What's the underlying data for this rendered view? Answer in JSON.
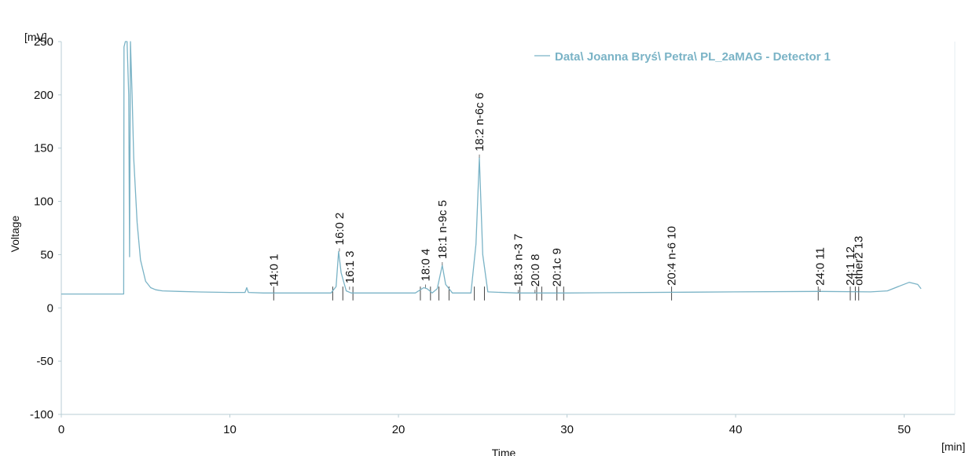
{
  "chart_data": {
    "type": "line",
    "title": "",
    "xlabel": "Time",
    "ylabel": "Voltage",
    "x_unit": "[min]",
    "y_unit": "[mV]",
    "xlim": [
      0,
      53
    ],
    "ylim": [
      -100,
      250
    ],
    "xticks": [
      0,
      10,
      20,
      30,
      40,
      50
    ],
    "yticks": [
      -100,
      -50,
      0,
      50,
      100,
      150,
      200,
      250
    ],
    "grid": false,
    "legend_position": "top-right",
    "line_color": "#7ab3c6",
    "series": [
      {
        "name": "Data\\ Joanna Bryś\\ Petra\\ PL_2aMAG - Detector 1",
        "x": [
          0,
          3.7,
          3.72,
          3.8,
          3.9,
          4.0,
          4.05,
          4.1,
          4.2,
          4.3,
          4.5,
          4.7,
          5.0,
          5.3,
          5.6,
          6.0,
          7.0,
          8.0,
          10.0,
          10.9,
          11.0,
          11.1,
          12.0,
          14.0,
          16.0,
          16.3,
          16.45,
          16.6,
          16.9,
          17.2,
          18.0,
          21.0,
          21.5,
          21.7,
          22.0,
          22.3,
          22.6,
          22.8,
          23.2,
          24.3,
          24.6,
          24.8,
          25.0,
          25.3,
          27.0,
          30.0,
          40.0,
          45.0,
          48.0,
          49.0,
          49.8,
          50.3,
          50.8,
          51.0
        ],
        "y": [
          13,
          13,
          245,
          250,
          250,
          200,
          48,
          250,
          200,
          140,
          80,
          45,
          25,
          19,
          17,
          16,
          15.5,
          15,
          14.5,
          14.5,
          19,
          14.5,
          14,
          14,
          14,
          20,
          53,
          33,
          16,
          14,
          14,
          14,
          19,
          18,
          14,
          18,
          40,
          22,
          14,
          14,
          60,
          141,
          50,
          15,
          14,
          14,
          15,
          15.5,
          15,
          16,
          21,
          24,
          22,
          18
        ]
      }
    ],
    "peaks": [
      {
        "label": "14:0",
        "number": "1",
        "x": 12.6,
        "y": 14
      },
      {
        "label": "16:0",
        "number": "2",
        "x": 16.5,
        "y": 53
      },
      {
        "label": "16:1",
        "number": "3",
        "x": 17.1,
        "y": 17
      },
      {
        "label": "18:0",
        "number": "4",
        "x": 21.6,
        "y": 19
      },
      {
        "label": "18:1 n-9c",
        "number": "5",
        "x": 22.6,
        "y": 40
      },
      {
        "label": "18:2 n-6c",
        "number": "6",
        "x": 24.8,
        "y": 141
      },
      {
        "label": "18:3 n-3",
        "number": "7",
        "x": 27.1,
        "y": 14
      },
      {
        "label": "20:0",
        "number": "8",
        "x": 28.1,
        "y": 14
      },
      {
        "label": "20:1c",
        "number": "9",
        "x": 29.4,
        "y": 14
      },
      {
        "label": "20:4 n-6",
        "number": "10",
        "x": 36.2,
        "y": 15
      },
      {
        "label": "24:0",
        "number": "11",
        "x": 45.0,
        "y": 15
      },
      {
        "label": "24:1",
        "number": "12",
        "x": 46.8,
        "y": 15
      },
      {
        "label": "other2",
        "number": "13",
        "x": 47.3,
        "y": 15
      }
    ],
    "integration_marks": [
      12.6,
      16.1,
      16.7,
      17.3,
      21.3,
      21.9,
      22.4,
      23.0,
      24.5,
      25.1,
      27.2,
      28.2,
      28.5,
      29.4,
      29.8,
      36.2,
      44.9,
      46.8,
      47.1,
      47.3
    ]
  }
}
